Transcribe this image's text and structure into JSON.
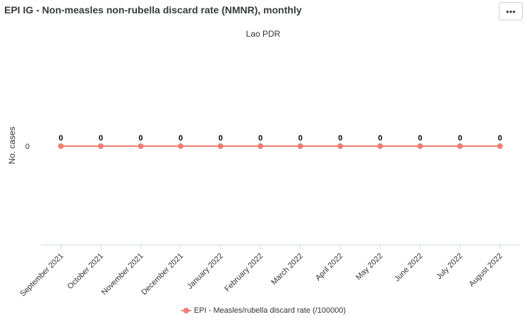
{
  "header": {
    "title": "EPI IG - Non-measles non-rubella discard rate (NMNR), monthly",
    "menu_icon": "more-horizontal-icon",
    "menu_glyph": "•••"
  },
  "colors": {
    "series": "#f07f73",
    "axis": "#ccd6eb",
    "text": "#333333"
  },
  "chart_data": {
    "type": "line",
    "title": "",
    "subtitle": "Lao PDR",
    "xlabel": "",
    "ylabel": "No. cases",
    "categories": [
      "September 2021",
      "October 2021",
      "November 2021",
      "December 2021",
      "January 2022",
      "February 2022",
      "March 2022",
      "April 2022",
      "May 2022",
      "June 2022",
      "July 2022",
      "August 2022"
    ],
    "y_ticks": [
      "0"
    ],
    "series": [
      {
        "name": "EPI - Measles/rubella discard rate (/100000)",
        "values": [
          0,
          0,
          0,
          0,
          0,
          0,
          0,
          0,
          0,
          0,
          0,
          0
        ],
        "data_labels": [
          "0",
          "0",
          "0",
          "0",
          "0",
          "0",
          "0",
          "0",
          "0",
          "0",
          "0",
          "0"
        ]
      }
    ],
    "grid": false,
    "legend": "bottom-center"
  }
}
